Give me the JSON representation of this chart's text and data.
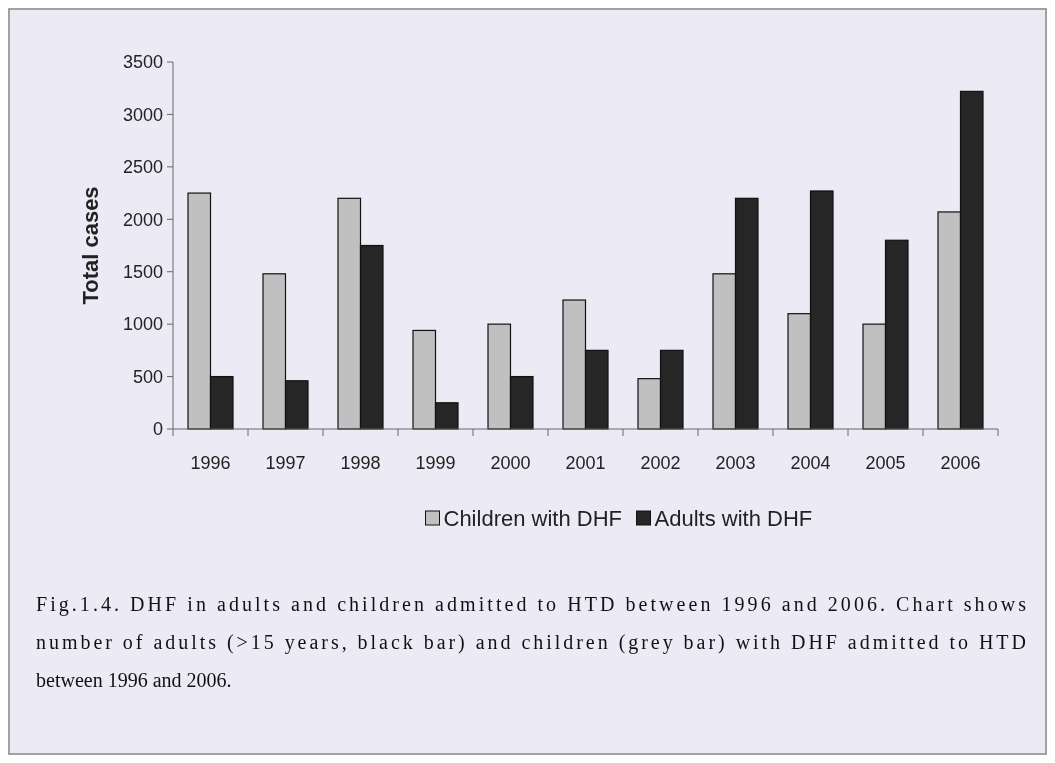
{
  "chart_data": {
    "type": "bar",
    "ylabel": "Total cases",
    "categories": [
      "1996",
      "1997",
      "1998",
      "1999",
      "2000",
      "2001",
      "2002",
      "2003",
      "2004",
      "2005",
      "2006"
    ],
    "series": [
      {
        "name": "Children with DHF",
        "color": "#c0c0c0",
        "values": [
          2250,
          1480,
          2200,
          940,
          1000,
          1230,
          480,
          1480,
          1100,
          1000,
          2070
        ]
      },
      {
        "name": "Adults with DHF",
        "color": "#262626",
        "values": [
          500,
          460,
          1750,
          250,
          500,
          750,
          750,
          2200,
          2270,
          1800,
          3220
        ]
      }
    ],
    "ylim": [
      0,
      3500
    ],
    "yticks": [
      0,
      500,
      1000,
      1500,
      2000,
      2500,
      3000,
      3500
    ],
    "grid": false,
    "legend": "bottom",
    "annotations": [
      "Fig.1.4. DHF in adults and children admitted to HTD between 1996 and 2006. Chart shows number of adults (>15 years, black bar) and children (grey bar) with DHF admitted to HTD between 1996 and 2006."
    ]
  }
}
